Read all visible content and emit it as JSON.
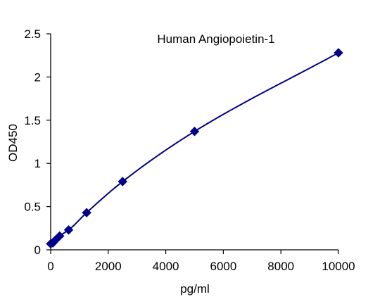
{
  "chart_data": {
    "type": "scatter",
    "title": "Human Angiopoietin-1",
    "xlabel": "pg/ml",
    "ylabel": "OD450",
    "xlim": [
      0,
      10000
    ],
    "ylim": [
      0,
      2.5
    ],
    "xticks": [
      0,
      2000,
      4000,
      6000,
      8000,
      10000
    ],
    "yticks": [
      0,
      0.5,
      1,
      1.5,
      2,
      2.5
    ],
    "xtick_labels": [
      "0",
      "2000",
      "4000",
      "6000",
      "8000",
      "10000"
    ],
    "ytick_labels": [
      "0",
      "0.5",
      "1",
      "1.5",
      "2",
      "2.5"
    ],
    "grid": false,
    "legend": "none",
    "series": [
      {
        "marker": "diamond",
        "color": "#00008B",
        "trendline": true,
        "x": [
          0,
          78,
          156,
          312,
          625,
          1250,
          2500,
          5000,
          10000
        ],
        "y": [
          0.07,
          0.08,
          0.11,
          0.16,
          0.23,
          0.43,
          0.79,
          1.37,
          2.28
        ]
      }
    ]
  }
}
